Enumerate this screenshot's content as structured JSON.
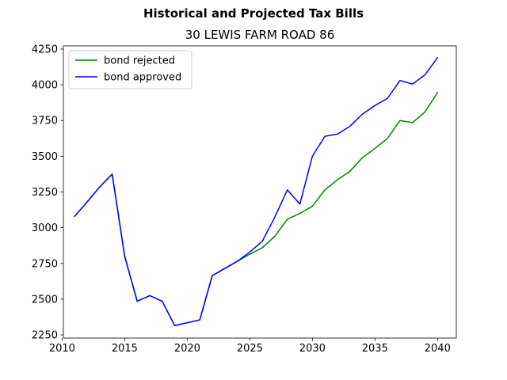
{
  "chart_data": {
    "type": "line",
    "suptitle": "Historical and Projected Tax Bills",
    "title": "30 LEWIS FARM ROAD  86",
    "xlabel": "",
    "ylabel": "",
    "xlim": [
      2010.1,
      2041.5
    ],
    "ylim": [
      2228,
      4272
    ],
    "xticks": [
      2010,
      2015,
      2020,
      2025,
      2030,
      2035,
      2040
    ],
    "yticks": [
      2250,
      2500,
      2750,
      3000,
      3250,
      3500,
      3750,
      4000,
      4250
    ],
    "grid": false,
    "legend_position": "upper-left",
    "series": [
      {
        "name": "bond rejected",
        "color": "#008000",
        "points": [
          [
            2011,
            3080
          ],
          [
            2012,
            3180
          ],
          [
            2013,
            3285
          ],
          [
            2014,
            3375
          ],
          [
            2015,
            2800
          ],
          [
            2016,
            2485
          ],
          [
            2017,
            2525
          ],
          [
            2018,
            2485
          ],
          [
            2019,
            2315
          ],
          [
            2020,
            2335
          ],
          [
            2021,
            2355
          ],
          [
            2022,
            2665
          ],
          [
            2023,
            2715
          ],
          [
            2024,
            2765
          ],
          [
            2025,
            2815
          ],
          [
            2026,
            2860
          ],
          [
            2027,
            2940
          ],
          [
            2028,
            3060
          ],
          [
            2029,
            3100
          ],
          [
            2030,
            3150
          ],
          [
            2031,
            3265
          ],
          [
            2032,
            3335
          ],
          [
            2033,
            3395
          ],
          [
            2034,
            3490
          ],
          [
            2035,
            3555
          ],
          [
            2036,
            3625
          ],
          [
            2037,
            3750
          ],
          [
            2038,
            3735
          ],
          [
            2039,
            3810
          ],
          [
            2040,
            3945
          ]
        ]
      },
      {
        "name": "bond approved",
        "color": "#0000ff",
        "points": [
          [
            2011,
            3080
          ],
          [
            2012,
            3180
          ],
          [
            2013,
            3285
          ],
          [
            2014,
            3375
          ],
          [
            2015,
            2800
          ],
          [
            2016,
            2485
          ],
          [
            2017,
            2525
          ],
          [
            2018,
            2485
          ],
          [
            2019,
            2315
          ],
          [
            2020,
            2335
          ],
          [
            2021,
            2355
          ],
          [
            2022,
            2665
          ],
          [
            2023,
            2715
          ],
          [
            2024,
            2765
          ],
          [
            2025,
            2830
          ],
          [
            2026,
            2905
          ],
          [
            2027,
            3075
          ],
          [
            2028,
            3265
          ],
          [
            2029,
            3165
          ],
          [
            2030,
            3500
          ],
          [
            2031,
            3640
          ],
          [
            2032,
            3655
          ],
          [
            2033,
            3710
          ],
          [
            2034,
            3795
          ],
          [
            2035,
            3855
          ],
          [
            2036,
            3905
          ],
          [
            2037,
            4030
          ],
          [
            2038,
            4005
          ],
          [
            2039,
            4070
          ],
          [
            2040,
            4190
          ]
        ]
      }
    ]
  }
}
